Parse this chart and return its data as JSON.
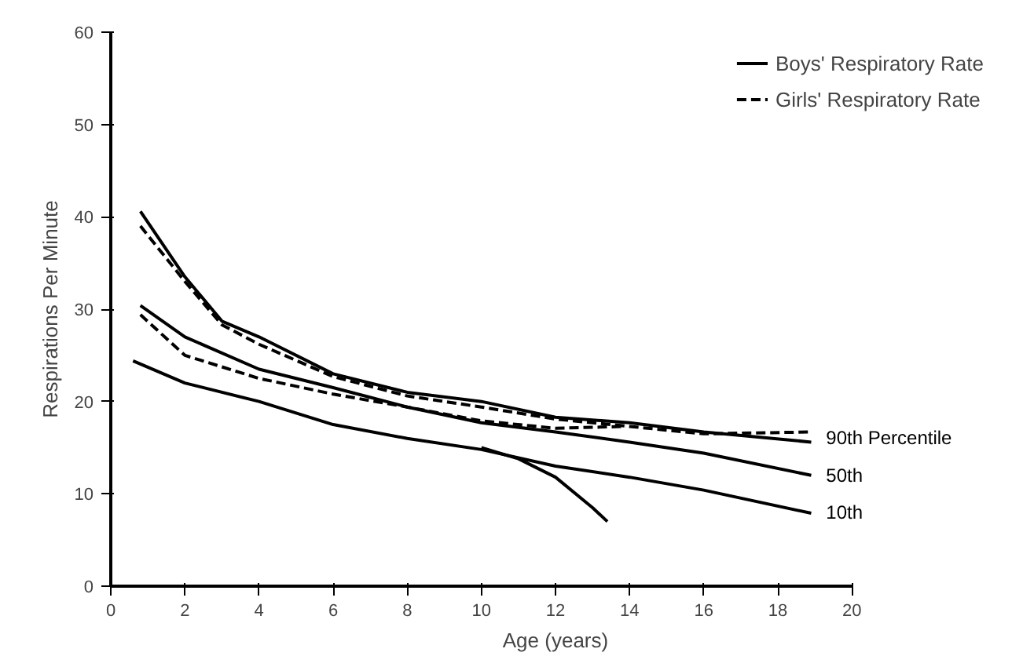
{
  "chart_data": {
    "type": "line",
    "xlabel": "Age (years)",
    "ylabel": "Respirations Per Minute",
    "xlim": [
      0,
      20
    ],
    "ylim": [
      0,
      60
    ],
    "xticks": [
      0,
      2,
      4,
      6,
      8,
      10,
      12,
      14,
      16,
      18,
      20
    ],
    "yticks": [
      0,
      10,
      20,
      30,
      40,
      50,
      60
    ],
    "grid": false,
    "legend": "top right",
    "marker": "none",
    "series": [
      {
        "name": "Boys' Respiratory Rate",
        "color": "#000000",
        "line_style": "solid",
        "x": [
          0.8,
          2,
          3,
          4,
          6,
          8,
          10,
          12,
          14,
          16,
          18.9
        ],
        "values": [
          40.6,
          33.5,
          28.7,
          27,
          23,
          21,
          20,
          18.3,
          17.7,
          16.7,
          15.6
        ]
      },
      {
        "color": "#000000",
        "line_style": "solid",
        "x": [
          0.8,
          2,
          4,
          6,
          8,
          10,
          12,
          14,
          16,
          18.9
        ],
        "values": [
          30.4,
          27,
          23.5,
          21.5,
          19.4,
          17.7,
          16.7,
          15.6,
          14.4,
          12
        ]
      },
      {
        "color": "#000000",
        "line_style": "solid",
        "x": [
          0.6,
          2,
          4,
          6,
          8,
          10,
          12,
          14,
          16,
          18.9
        ],
        "values": [
          24.4,
          22,
          20,
          17.5,
          16,
          14.8,
          13,
          11.8,
          10.4,
          7.9
        ]
      },
      {
        "color": "#000000",
        "line_style": "solid",
        "x": [
          10,
          11,
          12,
          13,
          13.4
        ],
        "values": [
          15,
          13.8,
          11.8,
          8.5,
          7
        ]
      },
      {
        "name": "Girls' Respiratory Rate",
        "color": "#000000",
        "line_style": "dashed",
        "x": [
          0.8,
          2,
          3,
          4,
          6,
          8,
          10,
          12,
          14,
          16,
          18.9
        ],
        "values": [
          39,
          33,
          28.3,
          26.2,
          22.7,
          20.6,
          19.4,
          18.1,
          17.3,
          16.5,
          16.7
        ]
      },
      {
        "color": "#000000",
        "line_style": "dashed",
        "x": [
          0.8,
          2,
          4,
          6,
          8,
          10,
          12,
          13.9
        ],
        "values": [
          29.4,
          25,
          22.5,
          20.8,
          19.4,
          17.9,
          17.1,
          17.3
        ]
      }
    ],
    "annotations": [
      "90th  Percentile",
      "50th",
      "10th"
    ]
  }
}
